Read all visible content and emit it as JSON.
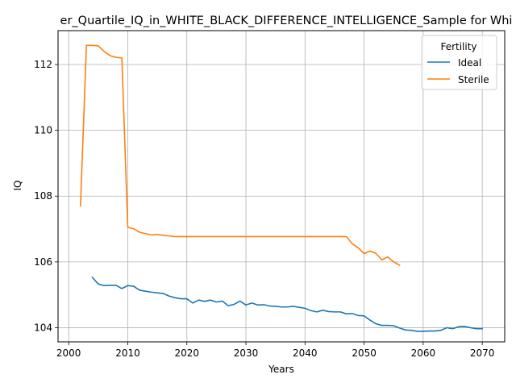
{
  "chart_data": {
    "type": "line",
    "title": "er_Quartile_IQ_in_WHITE_BLACK_DIFFERENCE_INTELLIGENCE_Sample for Whi",
    "xlabel": "Years",
    "ylabel": "IQ",
    "xlim": [
      1998.2,
      2073.8
    ],
    "ylim": [
      103.57,
      113.03
    ],
    "xticks": [
      2000,
      2010,
      2020,
      2030,
      2040,
      2050,
      2060,
      2070
    ],
    "yticks": [
      104,
      106,
      108,
      110,
      112
    ],
    "xtick_labels": [
      "2000",
      "2010",
      "2020",
      "2030",
      "2040",
      "2050",
      "2060",
      "2070"
    ],
    "ytick_labels": [
      "104",
      "106",
      "108",
      "110",
      "112"
    ],
    "grid": true,
    "legend": {
      "title": "Fertility",
      "placement": "top-right"
    },
    "series": [
      {
        "name": "Ideal",
        "color": "#1f77b4",
        "points": [
          [
            2004,
            105.53
          ],
          [
            2005,
            105.33
          ],
          [
            2006,
            105.28
          ],
          [
            2007,
            105.29
          ],
          [
            2008,
            105.29
          ],
          [
            2009,
            105.19
          ],
          [
            2010,
            105.28
          ],
          [
            2011,
            105.26
          ],
          [
            2012,
            105.14
          ],
          [
            2013,
            105.11
          ],
          [
            2014,
            105.08
          ],
          [
            2015,
            105.06
          ],
          [
            2016,
            105.04
          ],
          [
            2017,
            104.96
          ],
          [
            2018,
            104.91
          ],
          [
            2019,
            104.88
          ],
          [
            2020,
            104.88
          ],
          [
            2021,
            104.75
          ],
          [
            2022,
            104.84
          ],
          [
            2023,
            104.8
          ],
          [
            2024,
            104.84
          ],
          [
            2025,
            104.78
          ],
          [
            2026,
            104.81
          ],
          [
            2027,
            104.67
          ],
          [
            2028,
            104.71
          ],
          [
            2029,
            104.81
          ],
          [
            2030,
            104.69
          ],
          [
            2031,
            104.75
          ],
          [
            2032,
            104.69
          ],
          [
            2033,
            104.7
          ],
          [
            2034,
            104.66
          ],
          [
            2035,
            104.65
          ],
          [
            2036,
            104.63
          ],
          [
            2037,
            104.63
          ],
          [
            2038,
            104.65
          ],
          [
            2039,
            104.62
          ],
          [
            2040,
            104.59
          ],
          [
            2041,
            104.52
          ],
          [
            2042,
            104.48
          ],
          [
            2043,
            104.53
          ],
          [
            2044,
            104.49
          ],
          [
            2045,
            104.48
          ],
          [
            2046,
            104.48
          ],
          [
            2047,
            104.42
          ],
          [
            2048,
            104.43
          ],
          [
            2049,
            104.37
          ],
          [
            2050,
            104.36
          ],
          [
            2051,
            104.23
          ],
          [
            2052,
            104.12
          ],
          [
            2053,
            104.07
          ],
          [
            2054,
            104.07
          ],
          [
            2055,
            104.06
          ],
          [
            2056,
            103.99
          ],
          [
            2057,
            103.93
          ],
          [
            2058,
            103.92
          ],
          [
            2059,
            103.89
          ],
          [
            2060,
            103.89
          ],
          [
            2061,
            103.9
          ],
          [
            2062,
            103.9
          ],
          [
            2063,
            103.92
          ],
          [
            2064,
            104.0
          ],
          [
            2065,
            103.97
          ],
          [
            2066,
            104.03
          ],
          [
            2067,
            104.04
          ],
          [
            2068,
            104.0
          ],
          [
            2069,
            103.97
          ],
          [
            2070,
            103.97
          ]
        ]
      },
      {
        "name": "Sterile",
        "color": "#ff7f0e",
        "points": [
          [
            2002,
            107.7
          ],
          [
            2003,
            112.58
          ],
          [
            2004,
            112.58
          ],
          [
            2005,
            112.57
          ],
          [
            2006,
            112.4
          ],
          [
            2007,
            112.27
          ],
          [
            2008,
            112.22
          ],
          [
            2009,
            112.2
          ],
          [
            2010,
            107.05
          ],
          [
            2011,
            107.01
          ],
          [
            2012,
            106.9
          ],
          [
            2013,
            106.86
          ],
          [
            2014,
            106.82
          ],
          [
            2015,
            106.83
          ],
          [
            2016,
            106.81
          ],
          [
            2017,
            106.79
          ],
          [
            2018,
            106.77
          ],
          [
            2019,
            106.77
          ],
          [
            2020,
            106.77
          ],
          [
            2021,
            106.77
          ],
          [
            2022,
            106.77
          ],
          [
            2023,
            106.77
          ],
          [
            2024,
            106.77
          ],
          [
            2025,
            106.77
          ],
          [
            2026,
            106.77
          ],
          [
            2027,
            106.77
          ],
          [
            2028,
            106.77
          ],
          [
            2029,
            106.77
          ],
          [
            2030,
            106.77
          ],
          [
            2031,
            106.77
          ],
          [
            2032,
            106.77
          ],
          [
            2033,
            106.77
          ],
          [
            2034,
            106.77
          ],
          [
            2035,
            106.77
          ],
          [
            2036,
            106.77
          ],
          [
            2037,
            106.77
          ],
          [
            2038,
            106.77
          ],
          [
            2039,
            106.77
          ],
          [
            2040,
            106.77
          ],
          [
            2041,
            106.77
          ],
          [
            2042,
            106.77
          ],
          [
            2043,
            106.77
          ],
          [
            2044,
            106.77
          ],
          [
            2045,
            106.77
          ],
          [
            2046,
            106.77
          ],
          [
            2047,
            106.77
          ],
          [
            2048,
            106.55
          ],
          [
            2049,
            106.43
          ],
          [
            2050,
            106.25
          ],
          [
            2051,
            106.33
          ],
          [
            2052,
            106.26
          ],
          [
            2053,
            106.06
          ],
          [
            2054,
            106.15
          ],
          [
            2055,
            106.0
          ],
          [
            2056,
            105.9
          ]
        ]
      }
    ]
  }
}
